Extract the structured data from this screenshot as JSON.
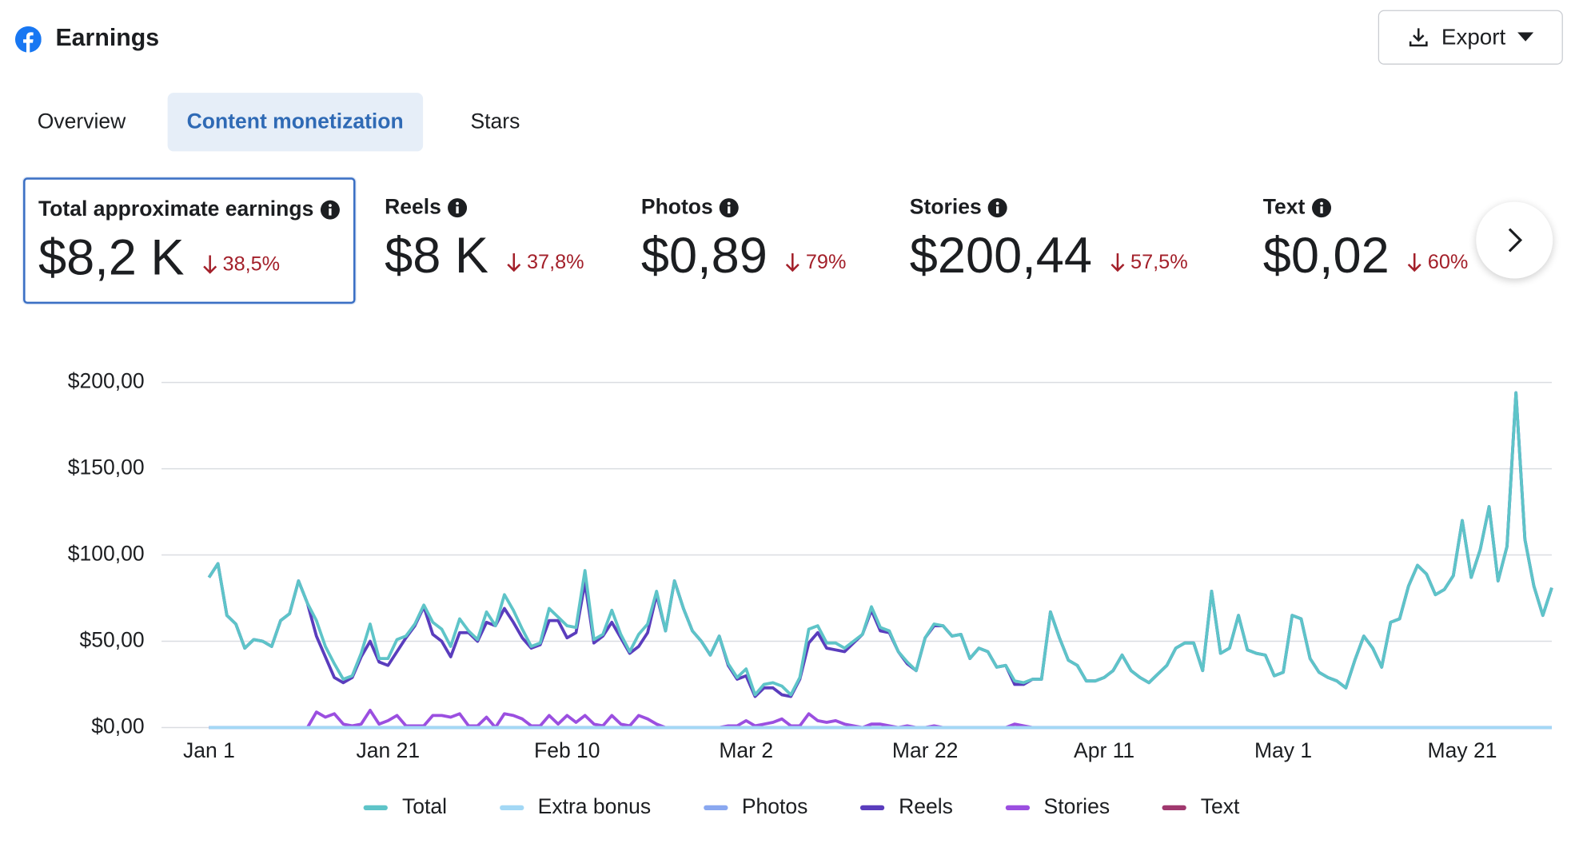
{
  "header": {
    "title": "Earnings",
    "export_button": "Export"
  },
  "tabs": [
    "Overview",
    "Content monetization",
    "Stars"
  ],
  "cards": [
    {
      "label": "Total approximate earnings",
      "value": "$8,2 K",
      "change": "38,5%"
    },
    {
      "label": "Reels",
      "value": "$8 K",
      "change": "37,8%"
    },
    {
      "label": "Photos",
      "value": "$0,89",
      "change": "79%"
    },
    {
      "label": "Stories",
      "value": "$200,44",
      "change": "57,5%"
    },
    {
      "label": "Text",
      "value": "$0,02",
      "change": "60%"
    }
  ],
  "chart_data": {
    "type": "line",
    "categories": [
      "Jan 1",
      null,
      null,
      null,
      null,
      null,
      null,
      null,
      null,
      null,
      null,
      null,
      null,
      null,
      null,
      null,
      null,
      null,
      null,
      null,
      "Jan 21",
      null,
      null,
      null,
      null,
      null,
      null,
      null,
      null,
      null,
      null,
      null,
      null,
      null,
      null,
      null,
      null,
      null,
      null,
      null,
      "Feb 10",
      null,
      null,
      null,
      null,
      null,
      null,
      null,
      null,
      null,
      null,
      null,
      null,
      null,
      null,
      null,
      null,
      null,
      null,
      null,
      "Mar 2",
      null,
      null,
      null,
      null,
      null,
      null,
      null,
      null,
      null,
      null,
      null,
      null,
      null,
      null,
      null,
      null,
      null,
      null,
      null,
      "Mar 22",
      null,
      null,
      null,
      null,
      null,
      null,
      null,
      null,
      null,
      null,
      null,
      null,
      null,
      null,
      null,
      null,
      null,
      null,
      null,
      "Apr 11",
      null,
      null,
      null,
      null,
      null,
      null,
      null,
      null,
      null,
      null,
      null,
      null,
      null,
      null,
      null,
      null,
      null,
      null,
      null,
      "May 1",
      null,
      null,
      null,
      null,
      null,
      null,
      null,
      null,
      null,
      null,
      null,
      null,
      null,
      null,
      null,
      null,
      null,
      null,
      null,
      "May 21",
      null,
      null,
      null,
      null,
      null,
      null,
      null,
      null,
      null,
      null
    ],
    "ylim": [
      0,
      200
    ],
    "yticks": [
      {
        "value": 0,
        "label": "$0,00"
      },
      {
        "value": 50,
        "label": "$50,00"
      },
      {
        "value": 100,
        "label": "$100,00"
      },
      {
        "value": 150,
        "label": "$150,00"
      },
      {
        "value": 200,
        "label": "$200,00"
      }
    ],
    "grid": true,
    "legend": "bottom",
    "series": [
      {
        "name": "Total",
        "color": "#5ec4c8",
        "values": [
          87,
          95,
          65,
          60,
          46,
          51,
          50,
          47,
          62,
          66,
          85,
          72,
          62,
          47,
          37,
          28,
          30,
          43,
          60,
          40,
          40,
          51,
          53,
          60,
          71,
          61,
          57,
          47,
          63,
          56,
          51,
          67,
          59,
          77,
          68,
          57,
          47,
          49,
          69,
          64,
          59,
          58,
          91,
          51,
          54,
          68,
          54,
          44,
          54,
          60,
          79,
          56,
          85,
          69,
          56,
          50,
          42,
          53,
          37,
          29,
          34,
          19,
          25,
          26,
          24,
          19,
          29,
          57,
          59,
          49,
          49,
          46,
          50,
          54,
          70,
          58,
          56,
          44,
          38,
          33,
          52,
          60,
          59,
          53,
          54,
          40,
          46,
          44,
          35,
          36,
          27,
          26,
          28,
          28,
          67,
          52,
          39,
          36,
          27,
          27,
          29,
          33,
          42,
          33,
          29,
          26,
          31,
          36,
          46,
          49,
          49,
          33,
          79,
          43,
          46,
          65,
          45,
          43,
          42,
          30,
          32,
          65,
          63,
          40,
          32,
          29,
          27,
          23,
          39,
          53,
          46,
          35,
          61,
          63,
          82,
          94,
          89,
          77,
          80,
          88,
          120,
          87,
          103,
          128,
          85,
          105,
          194,
          109,
          82,
          65,
          81
        ]
      },
      {
        "name": "Extra bonus",
        "color": "#a3d8f5",
        "values": [
          0,
          0,
          0,
          0,
          0,
          0,
          0,
          0,
          0,
          0,
          0,
          0,
          0,
          0,
          0,
          0,
          0,
          0,
          0,
          0,
          0,
          0,
          0,
          0,
          0,
          0,
          0,
          0,
          0,
          0,
          0,
          0,
          0,
          0,
          0,
          0,
          0,
          0,
          0,
          0,
          0,
          0,
          0,
          0,
          0,
          0,
          0,
          0,
          0,
          0,
          0,
          0,
          0,
          0,
          0,
          0,
          0,
          0,
          0,
          0,
          0,
          0,
          0,
          0,
          0,
          0,
          0,
          0,
          0,
          0,
          0,
          0,
          0,
          0,
          0,
          0,
          0,
          0,
          0,
          0,
          0,
          0,
          0,
          0,
          0,
          0,
          0,
          0,
          0,
          0,
          0,
          0,
          0,
          0,
          0,
          0,
          0,
          0,
          0,
          0,
          0,
          0,
          0,
          0,
          0,
          0,
          0,
          0,
          0,
          0,
          0,
          0,
          0,
          0,
          0,
          0,
          0,
          0,
          0,
          0,
          0,
          0,
          0,
          0,
          0,
          0,
          0,
          0,
          0,
          0,
          0,
          0,
          0,
          0,
          0,
          0,
          0,
          0,
          0,
          0,
          0,
          0,
          0,
          0,
          0,
          0,
          0,
          0,
          0,
          0,
          0
        ]
      },
      {
        "name": "Photos",
        "color": "#8aa8f0",
        "values": [
          0,
          0,
          0,
          0,
          0,
          0,
          0,
          0,
          0,
          0,
          0,
          0,
          0,
          0,
          0,
          0,
          0,
          0,
          0,
          0,
          0,
          0,
          0,
          0,
          0,
          0,
          0,
          0,
          0,
          0,
          0,
          0,
          0,
          0,
          0,
          0,
          0,
          0,
          0,
          0,
          0,
          0,
          0,
          0,
          0,
          0,
          0,
          0,
          0,
          0,
          0,
          0,
          0,
          0,
          0,
          0,
          0,
          0,
          0,
          0,
          0,
          0,
          0,
          0,
          0,
          0,
          0,
          0,
          0,
          0,
          0,
          0,
          0,
          0,
          0,
          0,
          0,
          0,
          0,
          0,
          0,
          0,
          0,
          0,
          0,
          0,
          0,
          0,
          0,
          0,
          0,
          0,
          0,
          0,
          0,
          0,
          0,
          0,
          0,
          0,
          0,
          0,
          0,
          0,
          0,
          0,
          0,
          0,
          0,
          0,
          0,
          0,
          0,
          0,
          0,
          0,
          0,
          0,
          0,
          0,
          0,
          0,
          0,
          0,
          0,
          0,
          0,
          0,
          0,
          0,
          0,
          0,
          0,
          0,
          0,
          0,
          0,
          0,
          0,
          0,
          0,
          0,
          0,
          0,
          0,
          0,
          0,
          0,
          0,
          0,
          0
        ]
      },
      {
        "name": "Reels",
        "color": "#5a3dbd",
        "values": [
          87,
          95,
          65,
          60,
          46,
          51,
          50,
          47,
          62,
          66,
          85,
          72,
          53,
          41,
          29,
          26,
          29,
          41,
          50,
          38,
          36,
          44,
          52,
          59,
          70,
          54,
          50,
          41,
          55,
          55,
          50,
          61,
          59,
          69,
          61,
          52,
          46,
          48,
          62,
          62,
          52,
          55,
          84,
          49,
          53,
          61,
          52,
          43,
          47,
          55,
          77,
          56,
          85,
          69,
          56,
          50,
          42,
          53,
          36,
          28,
          30,
          18,
          23,
          23,
          19,
          18,
          28,
          49,
          55,
          46,
          45,
          44,
          49,
          54,
          68,
          56,
          55,
          44,
          37,
          33,
          52,
          59,
          59,
          53,
          54,
          40,
          46,
          44,
          35,
          36,
          25,
          25,
          28,
          28,
          67,
          52,
          39,
          36,
          27,
          27,
          29,
          33,
          42,
          33,
          29,
          26,
          31,
          36,
          46,
          49,
          49,
          33,
          79,
          43,
          46,
          65,
          45,
          43,
          42,
          30,
          32,
          65,
          63,
          40,
          32,
          29,
          27,
          23,
          39,
          53,
          46,
          35,
          61,
          63,
          82,
          94,
          89,
          77,
          80,
          88,
          120,
          87,
          103,
          128,
          85,
          105,
          194,
          109,
          82,
          65,
          81
        ]
      },
      {
        "name": "Stories",
        "color": "#9b4fe0",
        "values": [
          0,
          0,
          0,
          0,
          0,
          0,
          0,
          0,
          0,
          0,
          0,
          0,
          9,
          6,
          8,
          2,
          1,
          2,
          10,
          2,
          4,
          7,
          1,
          1,
          1,
          7,
          7,
          6,
          8,
          1,
          1,
          6,
          0,
          8,
          7,
          5,
          1,
          1,
          7,
          2,
          7,
          3,
          7,
          2,
          1,
          7,
          2,
          1,
          7,
          5,
          2,
          0,
          0,
          0,
          0,
          0,
          0,
          0,
          1,
          1,
          4,
          1,
          2,
          3,
          5,
          1,
          1,
          8,
          4,
          3,
          4,
          2,
          1,
          0,
          2,
          2,
          1,
          0,
          1,
          0,
          0,
          1,
          0,
          0,
          0,
          0,
          0,
          0,
          0,
          0,
          2,
          1,
          0,
          0,
          0,
          0,
          0,
          0,
          0,
          0,
          0,
          0,
          0,
          0,
          0,
          0,
          0,
          0,
          0,
          0,
          0,
          0,
          0,
          0,
          0,
          0,
          0,
          0,
          0,
          0,
          0,
          0,
          0,
          0,
          0,
          0,
          0,
          0,
          0,
          0,
          0,
          0,
          0,
          0,
          0,
          0,
          0,
          0,
          0,
          0,
          0,
          0,
          0,
          0,
          0,
          0,
          0,
          0,
          0,
          0,
          0
        ]
      },
      {
        "name": "Text",
        "color": "#a0386e",
        "values": [
          0,
          0,
          0,
          0,
          0,
          0,
          0,
          0,
          0,
          0,
          0,
          0,
          0,
          0,
          0,
          0,
          0,
          0,
          0,
          0,
          0,
          0,
          0,
          0,
          0,
          0,
          0,
          0,
          0,
          0,
          0,
          0,
          0,
          0,
          0,
          0,
          0,
          0,
          0,
          0,
          0,
          0,
          0,
          0,
          0,
          0,
          0,
          0,
          0,
          0,
          0,
          0,
          0,
          0,
          0,
          0,
          0,
          0,
          0,
          0,
          0,
          0,
          0,
          0,
          0,
          0,
          0,
          0,
          0,
          0,
          0,
          0,
          0,
          0,
          0,
          0,
          0,
          0,
          0,
          0,
          0,
          0,
          0,
          0,
          0,
          0,
          0,
          0,
          0,
          0,
          0,
          0,
          0,
          0,
          0,
          0,
          0,
          0,
          0,
          0,
          0,
          0,
          0,
          0,
          0,
          0,
          0,
          0,
          0,
          0,
          0,
          0,
          0,
          0,
          0,
          0,
          0,
          0,
          0,
          0,
          0,
          0,
          0,
          0,
          0,
          0,
          0,
          0,
          0,
          0,
          0,
          0,
          0,
          0,
          0,
          0,
          0,
          0,
          0,
          0,
          0,
          0,
          0,
          0,
          0,
          0,
          0,
          0,
          0,
          0,
          0
        ]
      }
    ]
  }
}
